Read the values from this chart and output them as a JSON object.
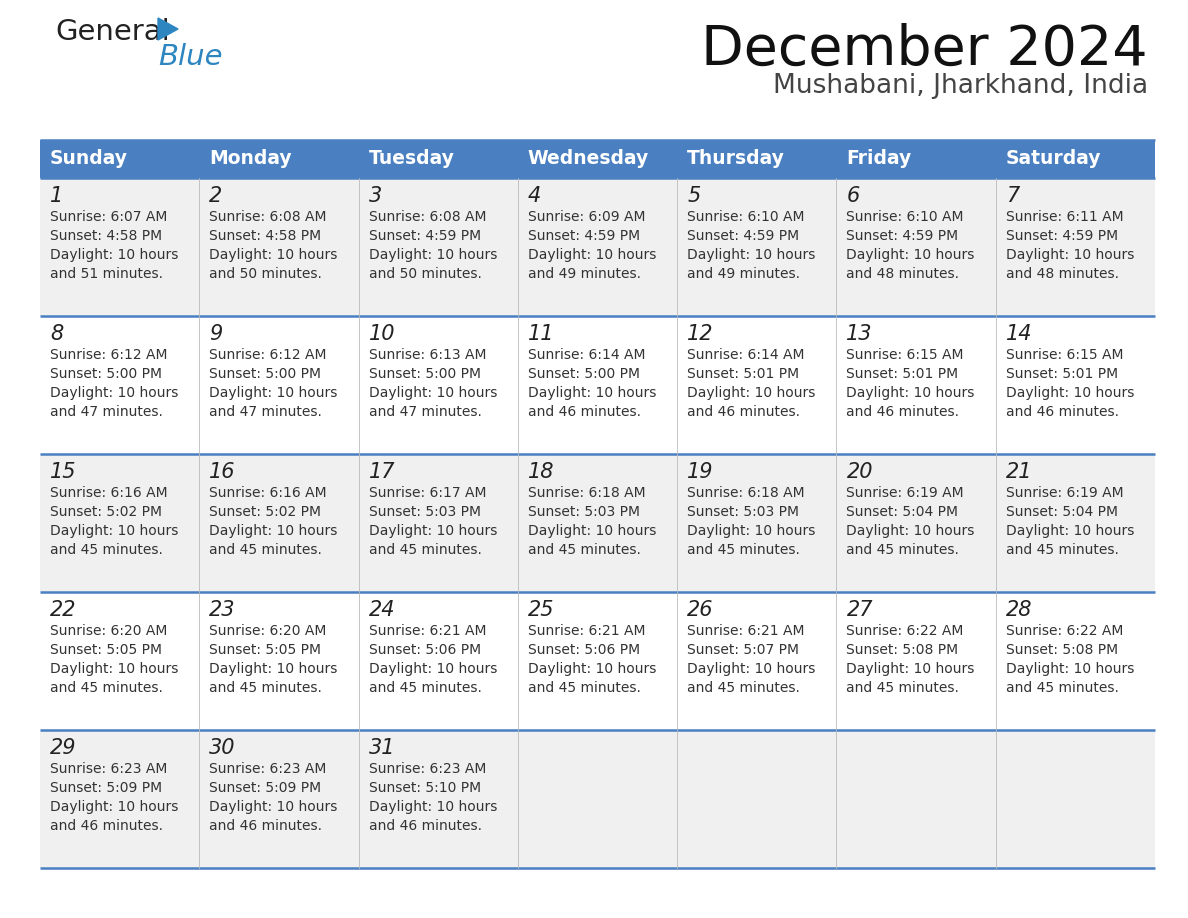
{
  "title": "December 2024",
  "subtitle": "Mushabani, Jharkhand, India",
  "header_bg": "#4a7fc1",
  "header_text_color": "#FFFFFF",
  "days_of_week": [
    "Sunday",
    "Monday",
    "Tuesday",
    "Wednesday",
    "Thursday",
    "Friday",
    "Saturday"
  ],
  "row_bg_odd": "#f0f0f0",
  "row_bg_even": "#ffffff",
  "cell_text_color": "#333333",
  "divider_color": "#4a7fc1",
  "background_color": "#ffffff",
  "calendar_data": [
    [
      {
        "day": 1,
        "sunrise": "6:07 AM",
        "sunset": "4:58 PM",
        "daylight_hours": 10,
        "daylight_minutes": 51
      },
      {
        "day": 2,
        "sunrise": "6:08 AM",
        "sunset": "4:58 PM",
        "daylight_hours": 10,
        "daylight_minutes": 50
      },
      {
        "day": 3,
        "sunrise": "6:08 AM",
        "sunset": "4:59 PM",
        "daylight_hours": 10,
        "daylight_minutes": 50
      },
      {
        "day": 4,
        "sunrise": "6:09 AM",
        "sunset": "4:59 PM",
        "daylight_hours": 10,
        "daylight_minutes": 49
      },
      {
        "day": 5,
        "sunrise": "6:10 AM",
        "sunset": "4:59 PM",
        "daylight_hours": 10,
        "daylight_minutes": 49
      },
      {
        "day": 6,
        "sunrise": "6:10 AM",
        "sunset": "4:59 PM",
        "daylight_hours": 10,
        "daylight_minutes": 48
      },
      {
        "day": 7,
        "sunrise": "6:11 AM",
        "sunset": "4:59 PM",
        "daylight_hours": 10,
        "daylight_minutes": 48
      }
    ],
    [
      {
        "day": 8,
        "sunrise": "6:12 AM",
        "sunset": "5:00 PM",
        "daylight_hours": 10,
        "daylight_minutes": 47
      },
      {
        "day": 9,
        "sunrise": "6:12 AM",
        "sunset": "5:00 PM",
        "daylight_hours": 10,
        "daylight_minutes": 47
      },
      {
        "day": 10,
        "sunrise": "6:13 AM",
        "sunset": "5:00 PM",
        "daylight_hours": 10,
        "daylight_minutes": 47
      },
      {
        "day": 11,
        "sunrise": "6:14 AM",
        "sunset": "5:00 PM",
        "daylight_hours": 10,
        "daylight_minutes": 46
      },
      {
        "day": 12,
        "sunrise": "6:14 AM",
        "sunset": "5:01 PM",
        "daylight_hours": 10,
        "daylight_minutes": 46
      },
      {
        "day": 13,
        "sunrise": "6:15 AM",
        "sunset": "5:01 PM",
        "daylight_hours": 10,
        "daylight_minutes": 46
      },
      {
        "day": 14,
        "sunrise": "6:15 AM",
        "sunset": "5:01 PM",
        "daylight_hours": 10,
        "daylight_minutes": 46
      }
    ],
    [
      {
        "day": 15,
        "sunrise": "6:16 AM",
        "sunset": "5:02 PM",
        "daylight_hours": 10,
        "daylight_minutes": 45
      },
      {
        "day": 16,
        "sunrise": "6:16 AM",
        "sunset": "5:02 PM",
        "daylight_hours": 10,
        "daylight_minutes": 45
      },
      {
        "day": 17,
        "sunrise": "6:17 AM",
        "sunset": "5:03 PM",
        "daylight_hours": 10,
        "daylight_minutes": 45
      },
      {
        "day": 18,
        "sunrise": "6:18 AM",
        "sunset": "5:03 PM",
        "daylight_hours": 10,
        "daylight_minutes": 45
      },
      {
        "day": 19,
        "sunrise": "6:18 AM",
        "sunset": "5:03 PM",
        "daylight_hours": 10,
        "daylight_minutes": 45
      },
      {
        "day": 20,
        "sunrise": "6:19 AM",
        "sunset": "5:04 PM",
        "daylight_hours": 10,
        "daylight_minutes": 45
      },
      {
        "day": 21,
        "sunrise": "6:19 AM",
        "sunset": "5:04 PM",
        "daylight_hours": 10,
        "daylight_minutes": 45
      }
    ],
    [
      {
        "day": 22,
        "sunrise": "6:20 AM",
        "sunset": "5:05 PM",
        "daylight_hours": 10,
        "daylight_minutes": 45
      },
      {
        "day": 23,
        "sunrise": "6:20 AM",
        "sunset": "5:05 PM",
        "daylight_hours": 10,
        "daylight_minutes": 45
      },
      {
        "day": 24,
        "sunrise": "6:21 AM",
        "sunset": "5:06 PM",
        "daylight_hours": 10,
        "daylight_minutes": 45
      },
      {
        "day": 25,
        "sunrise": "6:21 AM",
        "sunset": "5:06 PM",
        "daylight_hours": 10,
        "daylight_minutes": 45
      },
      {
        "day": 26,
        "sunrise": "6:21 AM",
        "sunset": "5:07 PM",
        "daylight_hours": 10,
        "daylight_minutes": 45
      },
      {
        "day": 27,
        "sunrise": "6:22 AM",
        "sunset": "5:08 PM",
        "daylight_hours": 10,
        "daylight_minutes": 45
      },
      {
        "day": 28,
        "sunrise": "6:22 AM",
        "sunset": "5:08 PM",
        "daylight_hours": 10,
        "daylight_minutes": 45
      }
    ],
    [
      {
        "day": 29,
        "sunrise": "6:23 AM",
        "sunset": "5:09 PM",
        "daylight_hours": 10,
        "daylight_minutes": 46
      },
      {
        "day": 30,
        "sunrise": "6:23 AM",
        "sunset": "5:09 PM",
        "daylight_hours": 10,
        "daylight_minutes": 46
      },
      {
        "day": 31,
        "sunrise": "6:23 AM",
        "sunset": "5:10 PM",
        "daylight_hours": 10,
        "daylight_minutes": 46
      },
      null,
      null,
      null,
      null
    ]
  ],
  "logo_general_color": "#222222",
  "logo_blue_color": "#2E86C1",
  "logo_triangle_color": "#2E86C1"
}
